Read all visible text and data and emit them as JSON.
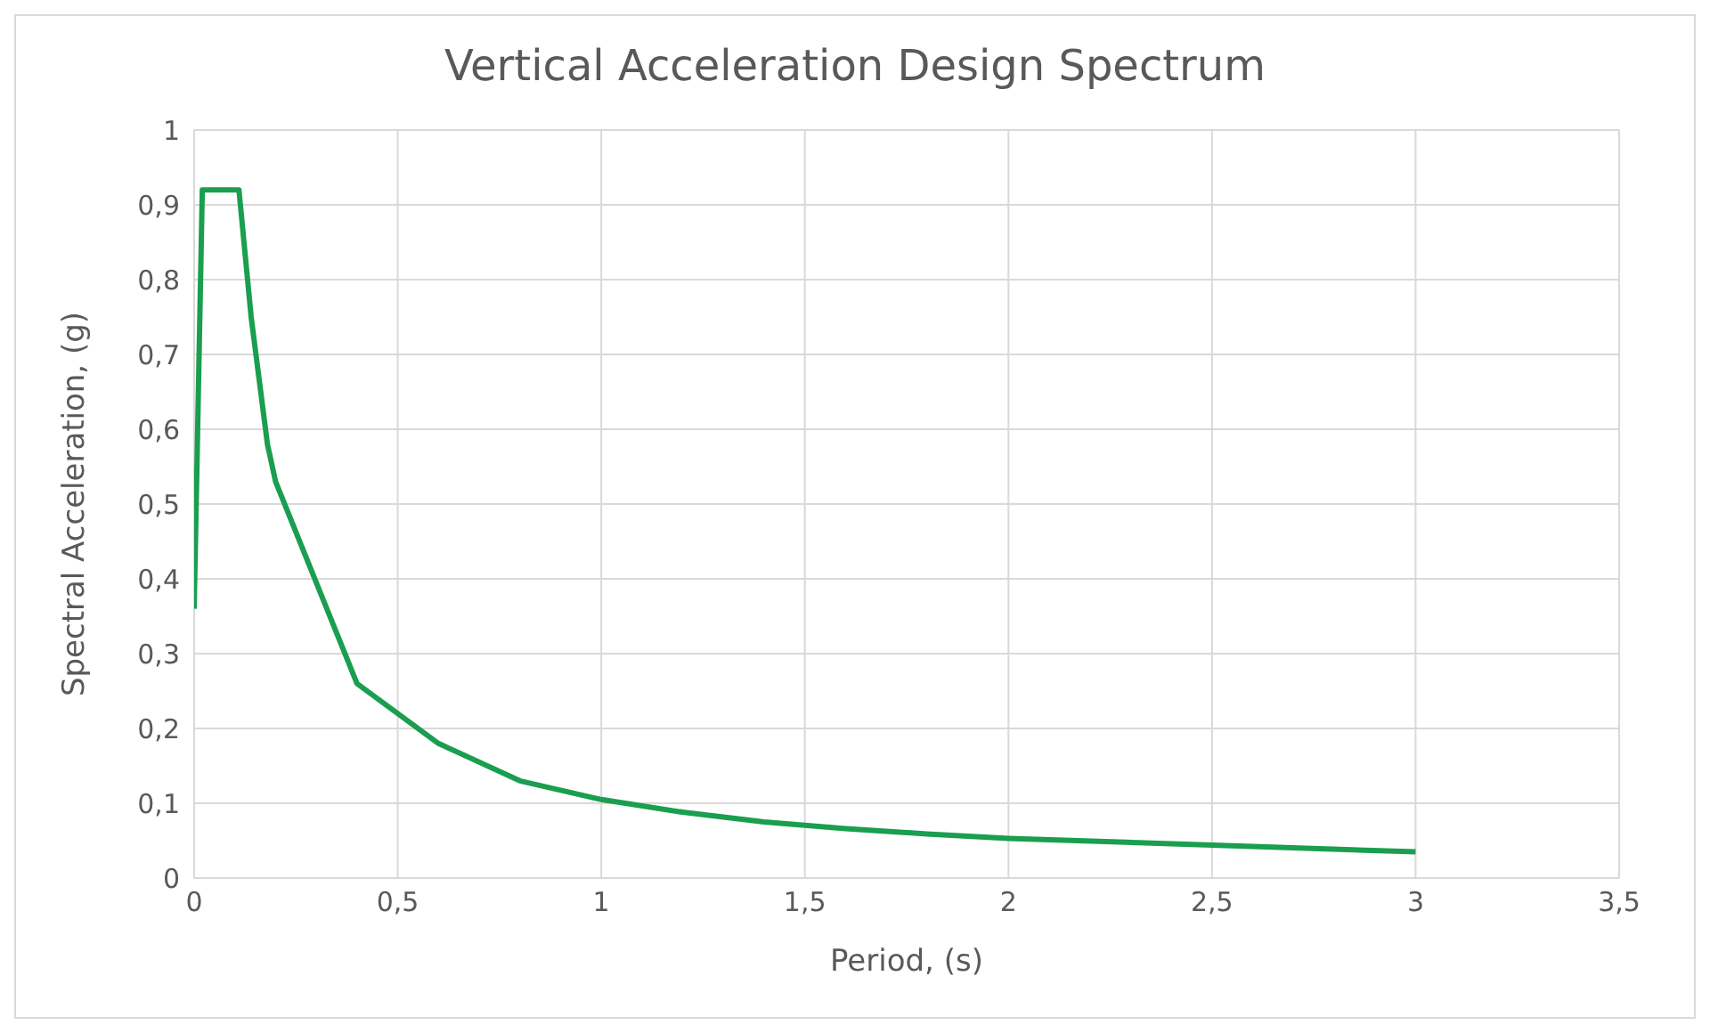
{
  "chart_data": {
    "type": "line",
    "title": "Vertical Acceleration Design Spectrum",
    "xlabel": "Period, (s)",
    "ylabel": "Spectral Acceleration, (g)",
    "x": [
      0,
      0.02,
      0.11,
      0.14,
      0.18,
      0.2,
      0.4,
      0.6,
      0.8,
      1.0,
      1.2,
      1.4,
      1.6,
      1.8,
      2.0,
      2.5,
      3.0
    ],
    "series": [
      {
        "color": "#1a9e4f",
        "values": [
          0.36,
          0.92,
          0.92,
          0.75,
          0.58,
          0.53,
          0.26,
          0.18,
          0.13,
          0.105,
          0.088,
          0.075,
          0.066,
          0.059,
          0.053,
          0.044,
          0.035
        ]
      }
    ],
    "xlim": [
      0,
      3.5
    ],
    "xticks": [
      {
        "value": 0,
        "label": "0"
      },
      {
        "value": 0.5,
        "label": "0,5"
      },
      {
        "value": 1,
        "label": "1"
      },
      {
        "value": 1.5,
        "label": "1,5"
      },
      {
        "value": 2,
        "label": "2"
      },
      {
        "value": 2.5,
        "label": "2,5"
      },
      {
        "value": 3,
        "label": "3"
      },
      {
        "value": 3.5,
        "label": "3,5"
      }
    ],
    "ylim": [
      0,
      1
    ],
    "yticks": [
      {
        "value": 0,
        "label": "0"
      },
      {
        "value": 0.1,
        "label": "0,1"
      },
      {
        "value": 0.2,
        "label": "0,2"
      },
      {
        "value": 0.3,
        "label": "0,3"
      },
      {
        "value": 0.4,
        "label": "0,4"
      },
      {
        "value": 0.5,
        "label": "0,5"
      },
      {
        "value": 0.6,
        "label": "0,6"
      },
      {
        "value": 0.7,
        "label": "0,7"
      },
      {
        "value": 0.8,
        "label": "0,8"
      },
      {
        "value": 0.9,
        "label": "0,9"
      },
      {
        "value": 1,
        "label": "1"
      }
    ],
    "grid": true,
    "legend": false,
    "marker": "none",
    "line_style": "solid"
  }
}
